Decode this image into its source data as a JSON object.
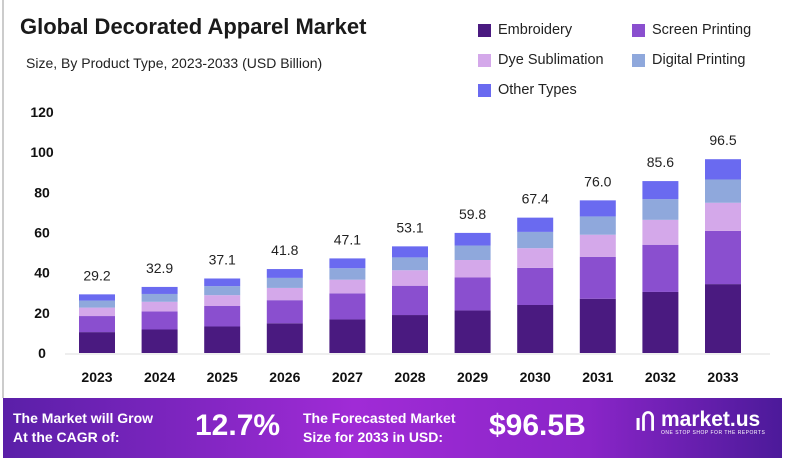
{
  "chart_data": {
    "type": "bar",
    "stacked": true,
    "title": "Global Decorated Apparel Market",
    "subtitle": "Size, By Product Type, 2023-2033 (USD Billion)",
    "categories": [
      "2023",
      "2024",
      "2025",
      "2026",
      "2027",
      "2028",
      "2029",
      "2030",
      "2031",
      "2032",
      "2033"
    ],
    "totals": [
      "29.2",
      "32.9",
      "37.1",
      "41.8",
      "47.1",
      "53.1",
      "59.8",
      "67.4",
      "76.0",
      "85.6",
      "96.5"
    ],
    "series": [
      {
        "name": "Embroidery",
        "color": "#4a1a80",
        "values": [
          10.4,
          11.7,
          13.2,
          14.8,
          16.7,
          18.9,
          21.2,
          23.9,
          27.0,
          30.4,
          34.3
        ]
      },
      {
        "name": "Screen Printing",
        "color": "#8a4fcf",
        "values": [
          8.0,
          9.0,
          10.2,
          11.5,
          13.0,
          14.6,
          16.4,
          18.5,
          20.9,
          23.5,
          26.5
        ]
      },
      {
        "name": "Dye Sublimation",
        "color": "#d4a8ea",
        "values": [
          4.2,
          4.8,
          5.4,
          6.1,
          6.8,
          7.7,
          8.7,
          9.8,
          11.0,
          12.4,
          14.0
        ]
      },
      {
        "name": "Digital Printing",
        "color": "#8fa8dc",
        "values": [
          3.5,
          3.9,
          4.5,
          5.0,
          5.7,
          6.4,
          7.2,
          8.1,
          9.1,
          10.3,
          11.6
        ]
      },
      {
        "name": "Other Types",
        "color": "#6a6af0",
        "values": [
          3.1,
          3.5,
          3.8,
          4.4,
          4.9,
          5.5,
          6.3,
          7.1,
          8.0,
          9.0,
          10.1
        ]
      }
    ],
    "yticks": [
      "0",
      "20",
      "40",
      "60",
      "80",
      "100",
      "120"
    ],
    "ylim": [
      0,
      120
    ],
    "grid": false,
    "legend": "top-right"
  },
  "footer": {
    "cagr_label_1": "The Market will Grow",
    "cagr_label_2": "At the CAGR of:",
    "cagr_value": "12.7%",
    "forecast_label_1": "The Forecasted Market",
    "forecast_label_2": "Size for 2033 in USD:",
    "forecast_value": "$96.5B",
    "brand": "market.us",
    "brand_tagline": "ONE STOP SHOP FOR THE REPORTS"
  }
}
